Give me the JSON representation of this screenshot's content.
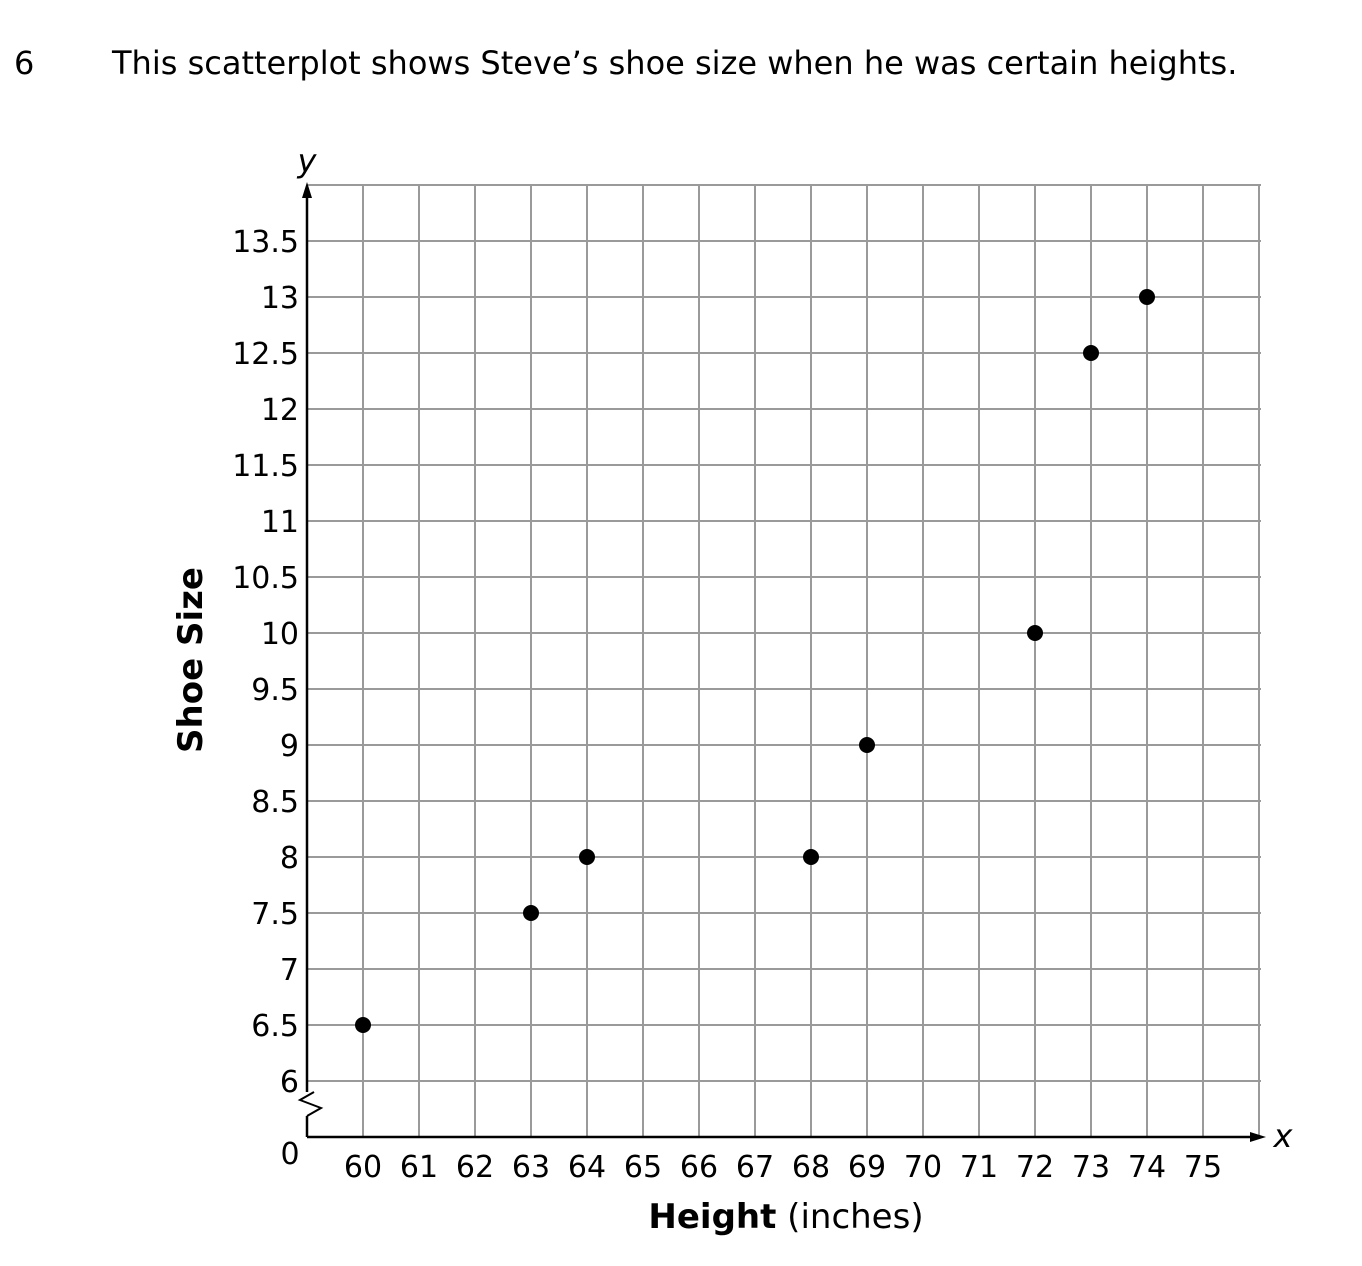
{
  "question": {
    "number": "6",
    "text": "This scatterplot shows Steve’s shoe size when he was certain heights."
  },
  "chart_data": {
    "type": "scatter",
    "xlabel_bold": "Height",
    "xlabel_rest": " (inches)",
    "ylabel": "Shoe Size",
    "x_var": "x",
    "y_var": "y",
    "origin_label": "0",
    "xlim": [
      59,
      76
    ],
    "ylim": [
      5.5,
      14
    ],
    "x_ticks": [
      60,
      61,
      62,
      63,
      64,
      65,
      66,
      67,
      68,
      69,
      70,
      71,
      72,
      73,
      74,
      75
    ],
    "y_ticks": [
      6,
      6.5,
      7,
      7.5,
      8,
      8.5,
      9,
      9.5,
      10,
      10.5,
      11,
      11.5,
      12,
      12.5,
      13,
      13.5
    ],
    "y_axis_break": true,
    "grid": true,
    "points": [
      {
        "x": 60,
        "y": 6.5
      },
      {
        "x": 63,
        "y": 7.5
      },
      {
        "x": 64,
        "y": 8
      },
      {
        "x": 68,
        "y": 8
      },
      {
        "x": 69,
        "y": 9
      },
      {
        "x": 72,
        "y": 10
      },
      {
        "x": 73,
        "y": 12.5
      },
      {
        "x": 74,
        "y": 13
      }
    ]
  }
}
